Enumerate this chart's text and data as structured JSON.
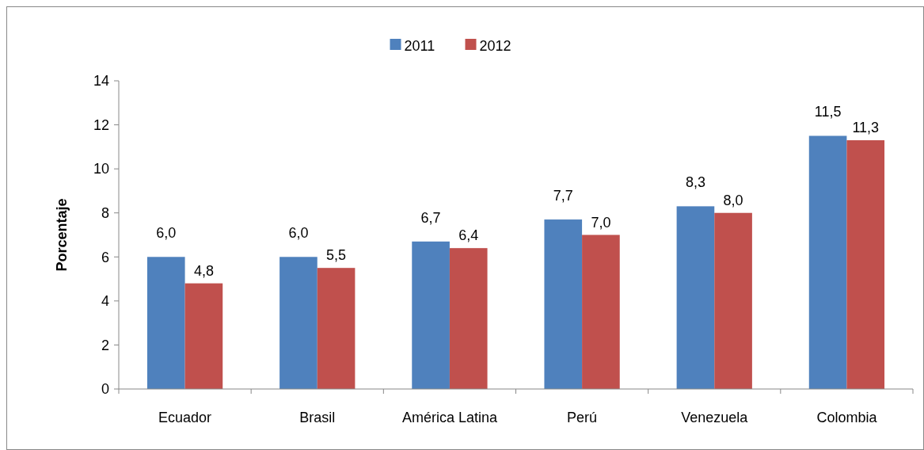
{
  "chart_data": {
    "type": "bar",
    "ylabel": "Porcentaje",
    "categories": [
      "Ecuador",
      "Brasil",
      "América Latina",
      "Perú",
      "Venezuela",
      "Colombia"
    ],
    "series": [
      {
        "name": "2011",
        "color": "#4f81bd",
        "values": [
          6.0,
          6.0,
          6.7,
          7.7,
          8.3,
          11.5
        ],
        "value_labels": [
          "6,0",
          "6,0",
          "6,7",
          "7,7",
          "8,3",
          "11,5"
        ]
      },
      {
        "name": "2012",
        "color": "#c0504d",
        "values": [
          4.8,
          5.5,
          6.4,
          7.0,
          8.0,
          11.3
        ],
        "value_labels": [
          "4,8",
          "5,5",
          "6,4",
          "7,0",
          "8,0",
          "11,3"
        ]
      }
    ],
    "ylim": [
      0,
      14
    ],
    "yticks": [
      0,
      2,
      4,
      6,
      8,
      10,
      12,
      14
    ],
    "legend": "top",
    "grid": false
  }
}
